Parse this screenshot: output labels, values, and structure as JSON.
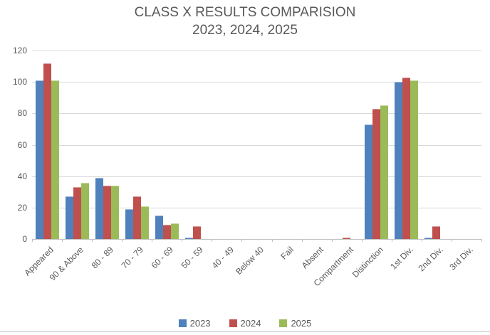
{
  "chart_data": {
    "type": "bar",
    "title": "CLASS X RESULTS COMPARISION",
    "subtitle": "2023, 2024, 2025",
    "categories": [
      "Appeared",
      "90 & Above",
      "80 - 89",
      "70 - 79",
      "60 - 69",
      "50 - 59",
      "40 - 49",
      "Below 40",
      "Fail",
      "Absent",
      "Compartment",
      "Distinction",
      "1st Div.",
      "2nd Div.",
      "3rd Div."
    ],
    "series": [
      {
        "name": "2023",
        "color": "#4F81BD",
        "values": [
          101,
          27,
          39,
          19,
          15,
          1,
          0,
          0,
          0,
          0,
          0,
          73,
          100,
          1,
          0
        ]
      },
      {
        "name": "2024",
        "color": "#C0504D",
        "values": [
          112,
          33,
          34,
          27,
          9,
          8,
          0,
          0,
          0,
          0,
          1,
          83,
          103,
          8,
          0
        ]
      },
      {
        "name": "2025",
        "color": "#9BBB59",
        "values": [
          101,
          36,
          34,
          21,
          10,
          0,
          0,
          0,
          0,
          0,
          0,
          85,
          101,
          0,
          0
        ]
      }
    ],
    "ylim": [
      0,
      120
    ],
    "yticks": [
      0,
      20,
      40,
      60,
      80,
      100,
      120
    ],
    "grid": true,
    "legend_position": "bottom",
    "colors": {
      "gridline": "#d9d9d9",
      "axis_line": "#bfbfbf",
      "text": "#595959"
    }
  }
}
